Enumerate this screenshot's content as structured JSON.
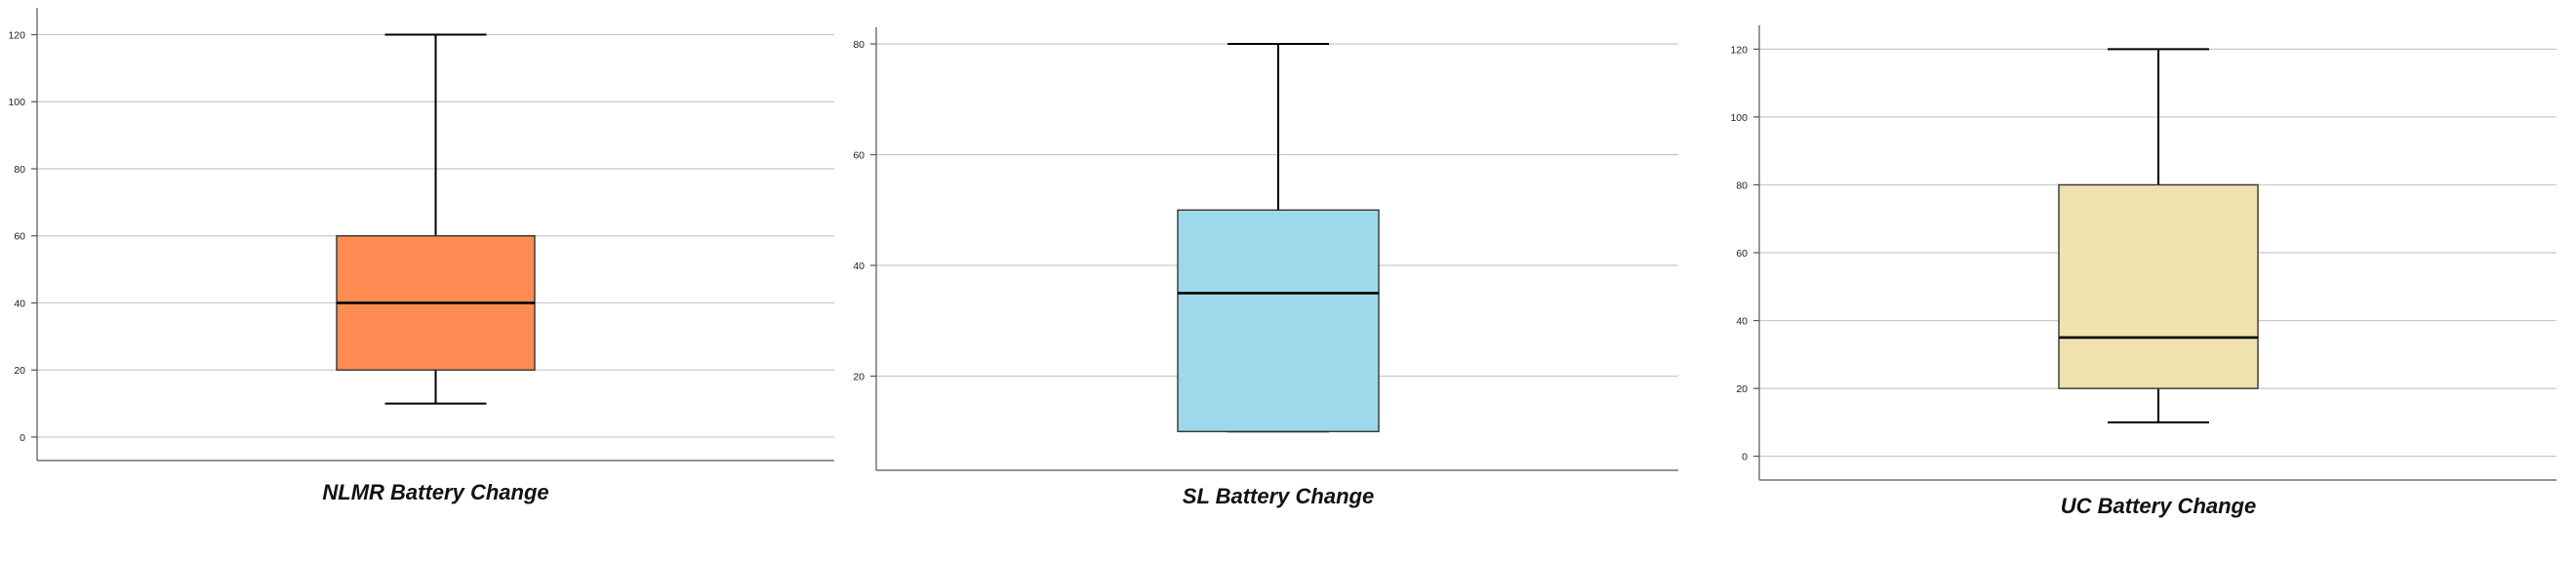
{
  "chart_data": [
    {
      "type": "box",
      "xlabel": "NLMR Battery Change",
      "yticks": [
        0,
        20,
        40,
        60,
        80,
        100,
        120
      ],
      "ylim": [
        -7,
        128
      ],
      "grid": true,
      "box": {
        "min": 10,
        "q1": 20,
        "median": 40,
        "q3": 60,
        "max": 120
      },
      "color": "#ff8c53"
    },
    {
      "type": "box",
      "xlabel": "SL Battery Change",
      "yticks": [
        20,
        40,
        60,
        80
      ],
      "ylim": [
        3,
        83
      ],
      "grid": true,
      "box": {
        "min": 10,
        "q1": 10,
        "median": 35,
        "q3": 50,
        "max": 80
      },
      "color": "#9dd9ea"
    },
    {
      "type": "box",
      "xlabel": "UC Battery Change",
      "yticks": [
        0,
        20,
        40,
        60,
        80,
        100,
        120
      ],
      "ylim": [
        -7,
        127
      ],
      "grid": true,
      "box": {
        "min": 10,
        "q1": 20,
        "median": 35,
        "q3": 80,
        "max": 120
      },
      "color": "#efe2ae"
    }
  ]
}
